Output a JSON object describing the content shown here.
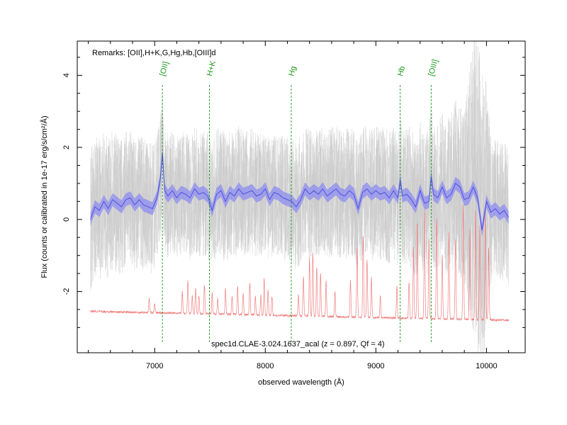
{
  "chart_data": {
    "type": "line",
    "title": "",
    "xlabel": "observed wavelength (Å)",
    "ylabel": "Flux (counts or calibrated in 1e-17 erg/s/cm²/Å)",
    "xlim": [
      6300,
      10350
    ],
    "ylim": [
      -3.7,
      4.95
    ],
    "xticks": [
      7000,
      8000,
      9000,
      10000
    ],
    "yticks": [
      -2,
      0,
      2,
      4
    ],
    "remarks": "Remarks: [OII],H+K,G,Hg,Hb,[OIII]d",
    "annotation": "spec1d.CLAE-3.024.1637_acal (z = 0.897, Qf = 4)",
    "grid": false,
    "line_markers": [
      {
        "label": "[OII]",
        "x": 7070
      },
      {
        "label": "H+K",
        "x": 7495
      },
      {
        "label": "Hg",
        "x": 8235
      },
      {
        "label": "Hb",
        "x": 9220
      },
      {
        "label": "[OIII]",
        "x": 9500
      }
    ],
    "series": [
      {
        "role": "smoothed spectrum",
        "color": "#4a4ae0",
        "band_color": "#8c8cf0",
        "x": [
          6420,
          6460,
          6500,
          6540,
          6580,
          6620,
          6660,
          6700,
          6740,
          6780,
          6820,
          6860,
          6900,
          6940,
          6980,
          7020,
          7050,
          7070,
          7090,
          7120,
          7160,
          7200,
          7240,
          7280,
          7320,
          7360,
          7400,
          7440,
          7480,
          7520,
          7560,
          7600,
          7640,
          7680,
          7720,
          7760,
          7800,
          7840,
          7880,
          7920,
          7960,
          8000,
          8040,
          8080,
          8120,
          8160,
          8200,
          8240,
          8280,
          8320,
          8360,
          8400,
          8440,
          8480,
          8520,
          8560,
          8600,
          8640,
          8680,
          8720,
          8760,
          8800,
          8840,
          8880,
          8920,
          8960,
          9000,
          9040,
          9080,
          9120,
          9160,
          9200,
          9220,
          9240,
          9280,
          9320,
          9360,
          9400,
          9440,
          9480,
          9500,
          9520,
          9560,
          9600,
          9640,
          9680,
          9720,
          9760,
          9800,
          9840,
          9880,
          9920,
          9960,
          10000,
          10040,
          10080,
          10120,
          10160,
          10200
        ],
        "y": [
          0.0,
          0.35,
          0.25,
          0.5,
          0.3,
          0.55,
          0.45,
          0.35,
          0.55,
          0.6,
          0.4,
          0.55,
          0.4,
          0.35,
          0.3,
          0.6,
          1.1,
          1.85,
          0.8,
          0.65,
          0.8,
          0.6,
          0.75,
          0.7,
          0.6,
          0.85,
          0.7,
          0.75,
          0.65,
          0.25,
          0.7,
          0.8,
          0.5,
          0.75,
          0.65,
          0.85,
          0.7,
          0.75,
          0.8,
          0.65,
          0.7,
          0.85,
          0.55,
          0.75,
          0.7,
          0.6,
          0.55,
          0.5,
          0.35,
          0.55,
          0.85,
          0.7,
          0.8,
          0.7,
          0.85,
          0.65,
          0.75,
          0.85,
          0.7,
          0.65,
          0.8,
          0.7,
          0.3,
          0.75,
          0.85,
          0.7,
          0.8,
          0.7,
          0.75,
          0.6,
          0.8,
          0.6,
          1.1,
          0.65,
          0.7,
          0.55,
          0.35,
          0.8,
          0.45,
          0.5,
          1.2,
          0.7,
          0.6,
          0.9,
          0.6,
          0.7,
          1.0,
          0.9,
          0.55,
          0.6,
          0.9,
          0.6,
          -0.3,
          0.5,
          0.2,
          0.3,
          0.15,
          0.25,
          0.05
        ],
        "band_half_width": 0.18
      },
      {
        "role": "raw spectrum (noise envelope)",
        "color": "#c8c8c8",
        "amplitude_x": [
          6420,
          6800,
          7200,
          7600,
          8000,
          8400,
          8800,
          9200,
          9600,
          9800,
          9900,
          9960,
          10000,
          10040,
          10200
        ],
        "amplitude_y": [
          2.0,
          1.9,
          1.7,
          1.8,
          1.7,
          1.8,
          1.8,
          1.9,
          2.1,
          2.5,
          4.5,
          4.5,
          3.5,
          2.0,
          1.9
        ]
      },
      {
        "role": "sky spectrum",
        "color": "#f08080",
        "baseline": -2.55,
        "baseline_end": -2.8,
        "lines": [
          {
            "x": 6950,
            "h": 0.4
          },
          {
            "x": 7000,
            "h": 0.25
          },
          {
            "x": 7250,
            "h": 0.6
          },
          {
            "x": 7300,
            "h": 0.9
          },
          {
            "x": 7340,
            "h": 0.5
          },
          {
            "x": 7370,
            "h": 0.7
          },
          {
            "x": 7400,
            "h": 0.5
          },
          {
            "x": 7450,
            "h": 0.8
          },
          {
            "x": 7520,
            "h": 0.6
          },
          {
            "x": 7570,
            "h": 0.45
          },
          {
            "x": 7640,
            "h": 0.7
          },
          {
            "x": 7700,
            "h": 0.5
          },
          {
            "x": 7750,
            "h": 0.8
          },
          {
            "x": 7800,
            "h": 0.6
          },
          {
            "x": 7860,
            "h": 0.9
          },
          {
            "x": 7910,
            "h": 0.5
          },
          {
            "x": 7960,
            "h": 0.55
          },
          {
            "x": 7990,
            "h": 1.0
          },
          {
            "x": 8025,
            "h": 0.7
          },
          {
            "x": 8060,
            "h": 0.5
          },
          {
            "x": 8300,
            "h": 0.6
          },
          {
            "x": 8345,
            "h": 1.1
          },
          {
            "x": 8400,
            "h": 1.6
          },
          {
            "x": 8430,
            "h": 1.8
          },
          {
            "x": 8465,
            "h": 1.4
          },
          {
            "x": 8500,
            "h": 1.2
          },
          {
            "x": 8550,
            "h": 1.0
          },
          {
            "x": 8630,
            "h": 0.7
          },
          {
            "x": 8770,
            "h": 1.0
          },
          {
            "x": 8830,
            "h": 1.9
          },
          {
            "x": 8885,
            "h": 2.3
          },
          {
            "x": 8920,
            "h": 1.6
          },
          {
            "x": 8960,
            "h": 1.1
          },
          {
            "x": 9040,
            "h": 0.6
          },
          {
            "x": 9190,
            "h": 0.9
          },
          {
            "x": 9300,
            "h": 1.0
          },
          {
            "x": 9340,
            "h": 2.0
          },
          {
            "x": 9375,
            "h": 2.7
          },
          {
            "x": 9440,
            "h": 3.0
          },
          {
            "x": 9480,
            "h": 2.2
          },
          {
            "x": 9550,
            "h": 2.8
          },
          {
            "x": 9600,
            "h": 1.8
          },
          {
            "x": 9660,
            "h": 2.4
          },
          {
            "x": 9720,
            "h": 2.2
          },
          {
            "x": 9790,
            "h": 3.2
          },
          {
            "x": 9850,
            "h": 2.5
          },
          {
            "x": 9900,
            "h": 3.0
          },
          {
            "x": 9940,
            "h": 2.6
          },
          {
            "x": 9990,
            "h": 3.1
          },
          {
            "x": 10020,
            "h": 2.0
          }
        ]
      }
    ]
  }
}
